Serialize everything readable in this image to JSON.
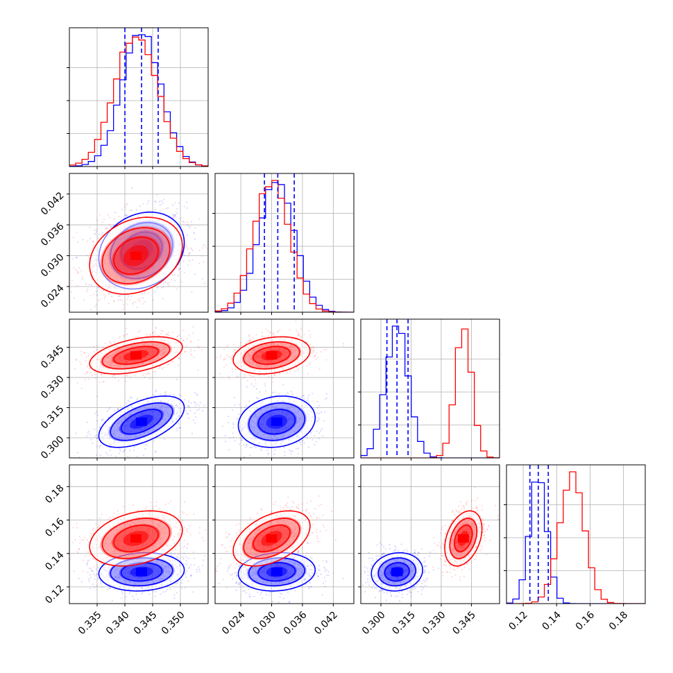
{
  "chart_data": {
    "type": "corner",
    "colors": {
      "series_a": "#0000ff",
      "series_b": "#ff0000"
    },
    "grid": true,
    "params": [
      {
        "range": [
          0.33,
          0.355
        ],
        "ticks": [
          "0.335",
          "0.340",
          "0.345",
          "0.350"
        ],
        "tick_values": [
          0.335,
          0.34,
          0.345,
          0.35
        ]
      },
      {
        "range": [
          0.019,
          0.046
        ],
        "ticks": [
          "0.024",
          "0.030",
          "0.036",
          "0.042"
        ],
        "tick_values": [
          0.024,
          0.03,
          0.036,
          0.042
        ]
      },
      {
        "range": [
          0.29,
          0.359
        ],
        "ticks": [
          "0.300",
          "0.315",
          "0.330",
          "0.345"
        ],
        "tick_values": [
          0.3,
          0.315,
          0.33,
          0.345
        ]
      },
      {
        "range": [
          0.11,
          0.193
        ],
        "ticks": [
          "0.12",
          "0.14",
          "0.16",
          "0.18"
        ],
        "tick_values": [
          0.12,
          0.14,
          0.16,
          0.18
        ]
      }
    ],
    "series": [
      {
        "color": "#0000ff",
        "mean": [
          0.343,
          0.031,
          0.308,
          0.129
        ],
        "sd": [
          0.0035,
          0.0034,
          0.0058,
          0.0052
        ],
        "quantiles": [
          [
            0.34,
            0.343,
            0.346
          ],
          [
            0.0286,
            0.0312,
            0.0344
          ],
          [
            0.303,
            0.308,
            0.3135
          ],
          [
            0.124,
            0.129,
            0.135
          ]
        ],
        "rho": [
          [
            1,
            0.2,
            0.55,
            0.1
          ],
          [
            0.2,
            1,
            0.15,
            0.1
          ],
          [
            0.55,
            0.15,
            1,
            0.1
          ],
          [
            0.1,
            0.1,
            0.1,
            1
          ]
        ]
      },
      {
        "color": "#ff0000",
        "mean": [
          0.342,
          0.03,
          0.341,
          0.149
        ],
        "sd": [
          0.0038,
          0.0034,
          0.0042,
          0.0075
        ],
        "rho": [
          [
            1,
            0.25,
            0.45,
            0.3
          ],
          [
            0.25,
            1,
            0.25,
            0.45
          ],
          [
            0.45,
            0.25,
            1,
            0.35
          ],
          [
            0.3,
            0.45,
            0.35,
            1
          ]
        ]
      }
    ]
  }
}
